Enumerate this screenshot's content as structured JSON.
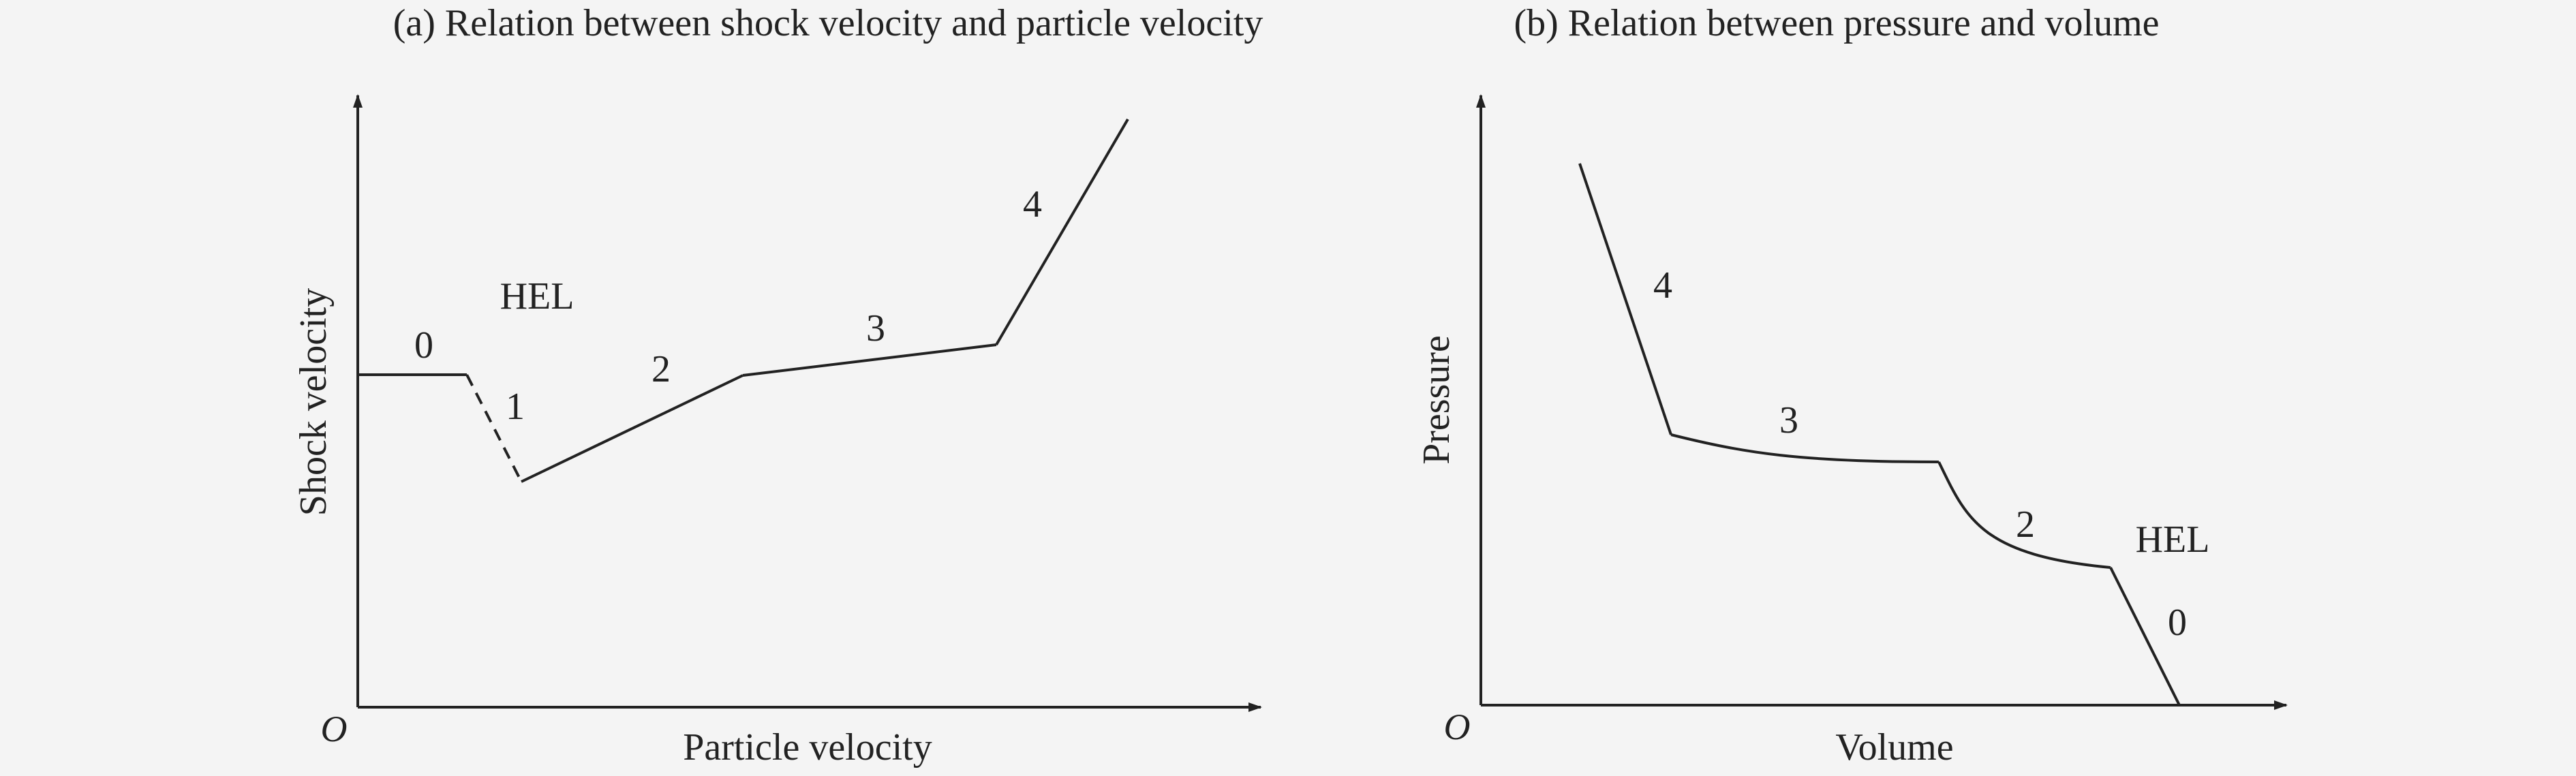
{
  "colors": {
    "background": "#f4f4f4",
    "ink": "#222222"
  },
  "panel_a": {
    "title": "(a) Relation between shock velocity and particle velocity",
    "origin_label": "O",
    "x_axis_label": "Particle velocity",
    "y_axis_label": "Shock velocity",
    "hel_label": "HEL",
    "segment_labels": [
      "0",
      "1",
      "2",
      "3",
      "4"
    ]
  },
  "panel_b": {
    "title": "(b) Relation between pressure and volume",
    "origin_label": "O",
    "x_axis_label": "Volume",
    "y_axis_label": "Pressure",
    "hel_label": "HEL",
    "segment_labels": [
      "4",
      "3",
      "2",
      "0"
    ]
  }
}
